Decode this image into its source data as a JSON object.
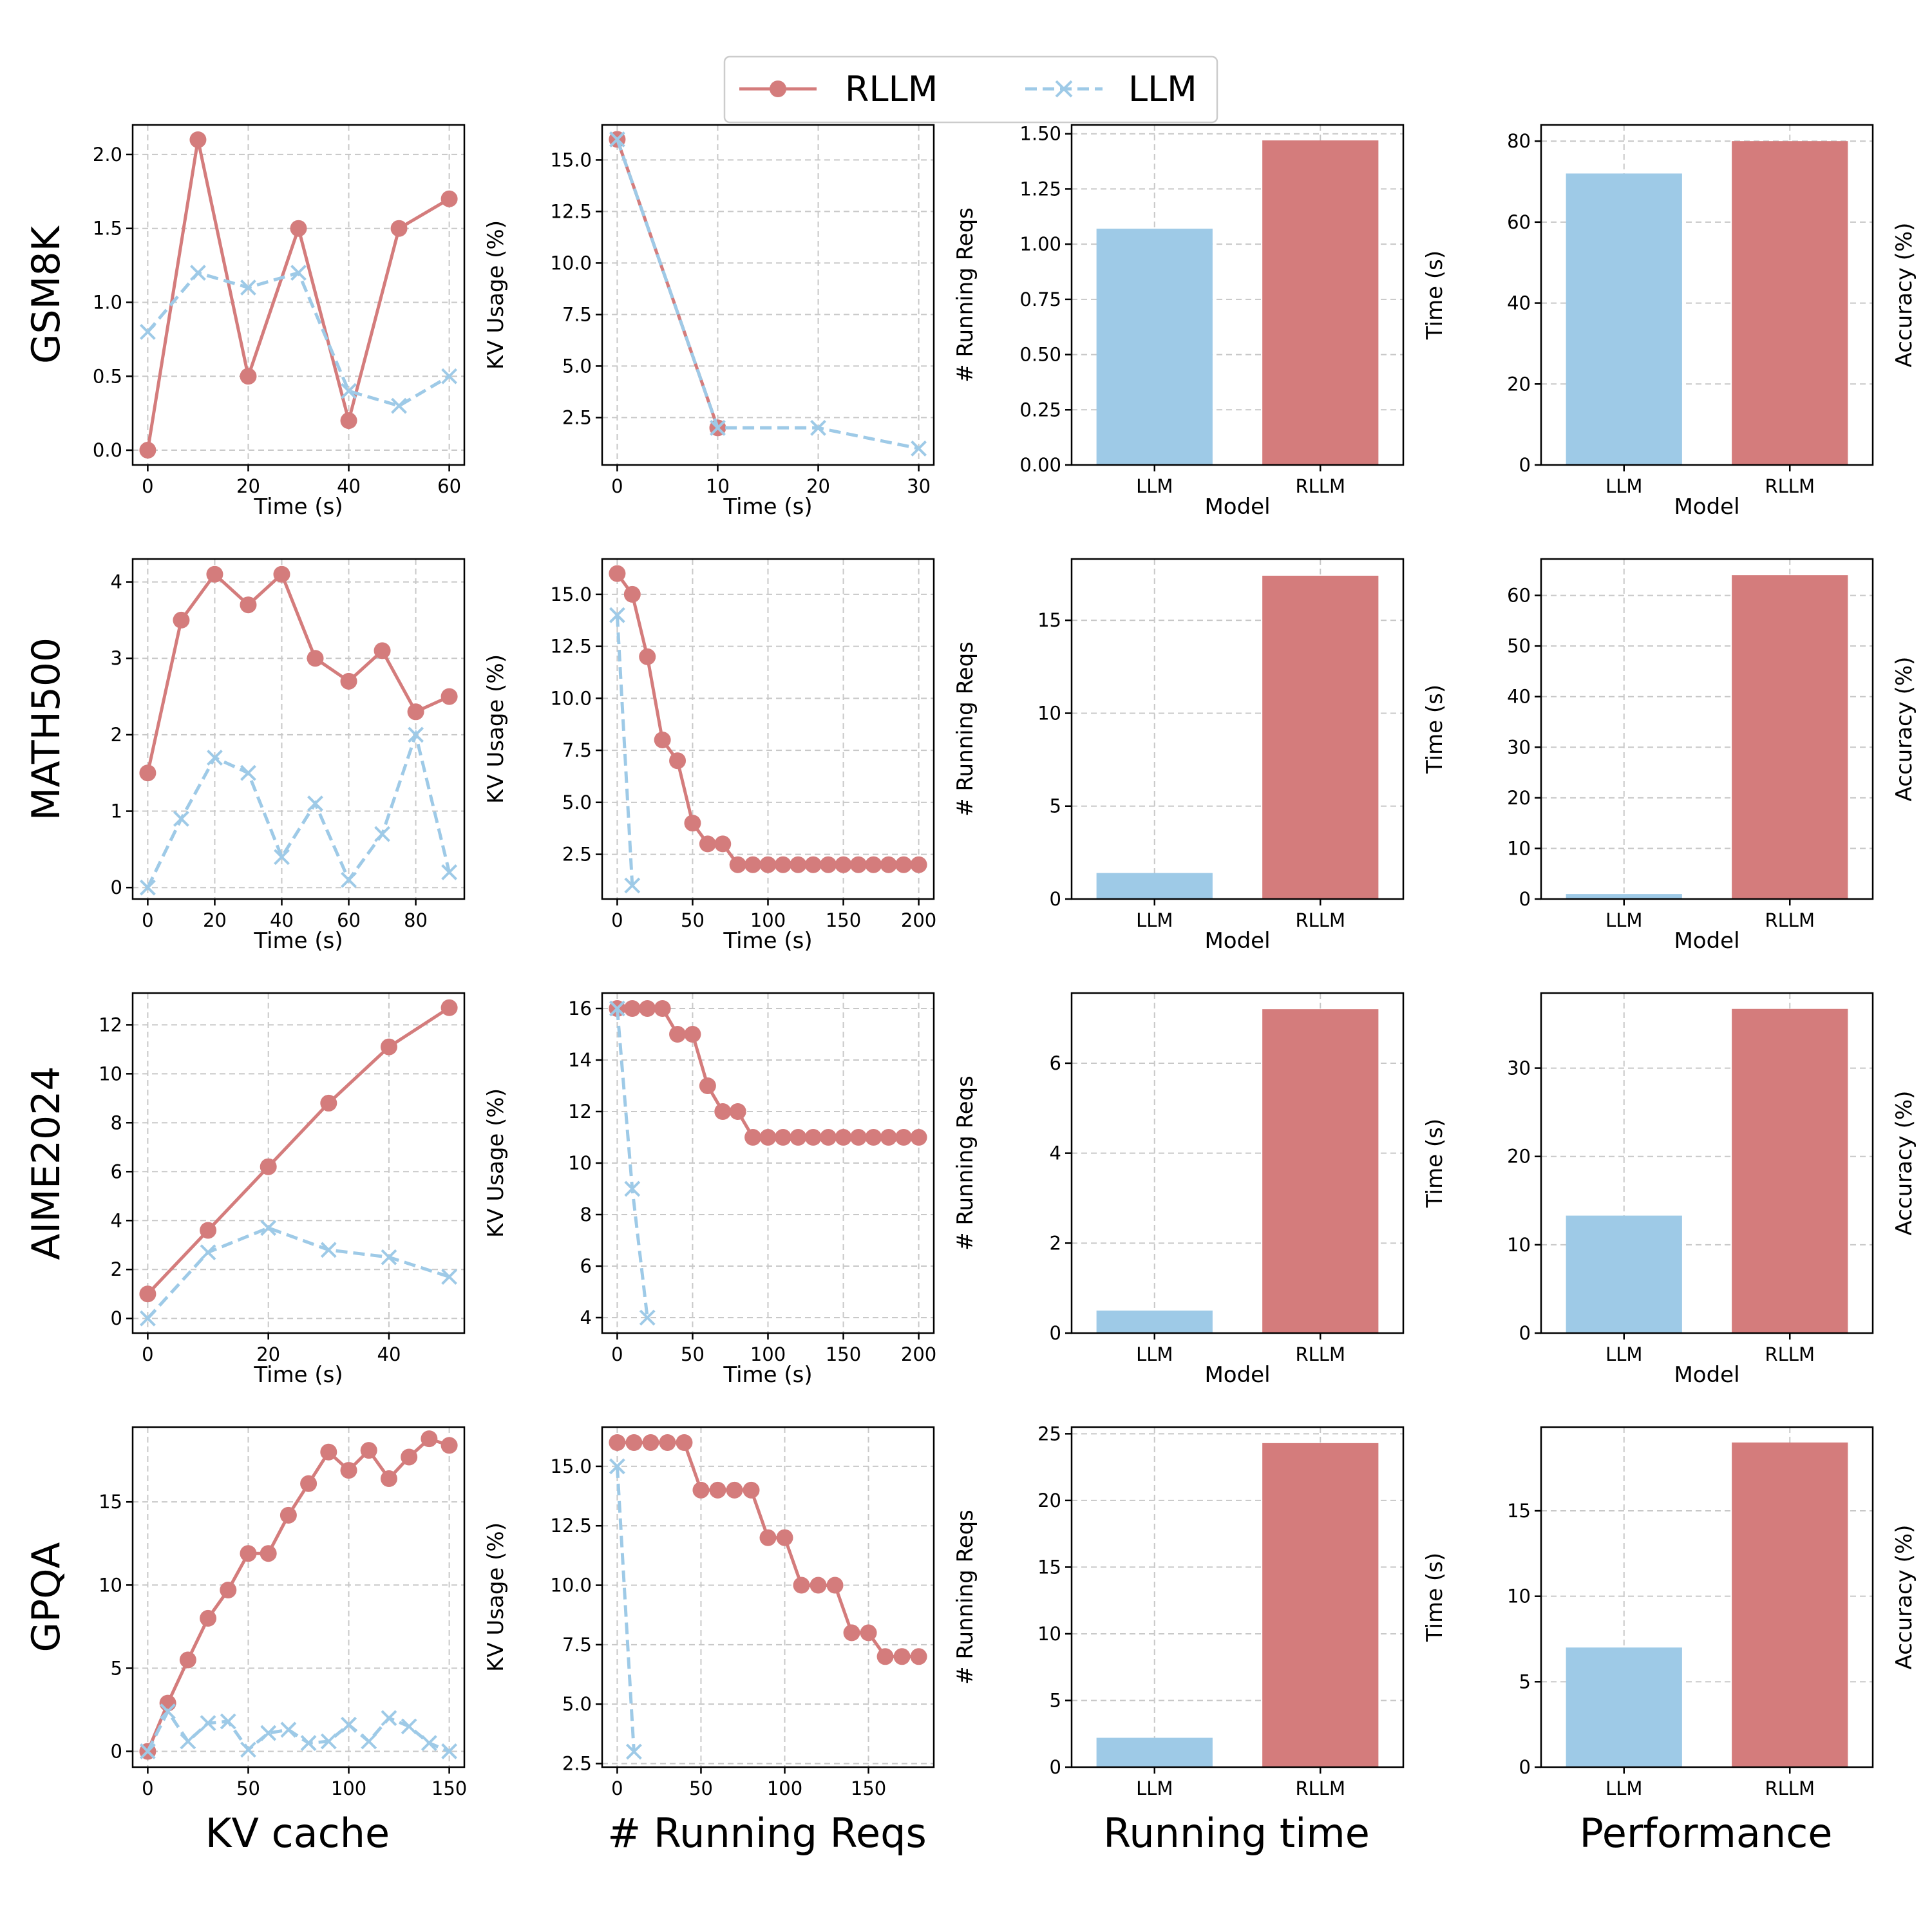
{
  "colors": {
    "rllm": "#d47c7c",
    "llm": "#9ecae7"
  },
  "legend": {
    "placement": "top-center",
    "entries": [
      {
        "label": "RLLM",
        "marker": "circle",
        "line": "solid",
        "color": "#d47c7c"
      },
      {
        "label": "LLM",
        "marker": "x",
        "line": "dashed",
        "color": "#9ecae7"
      }
    ]
  },
  "row_labels": [
    "GSM8K",
    "MATH500",
    "AIME2024",
    "GPQA"
  ],
  "column_labels": [
    "KV cache",
    "# Running Reqs",
    "Running time",
    "Performance"
  ],
  "chart_data": [
    {
      "dataset": "GSM8K",
      "column": "KV cache",
      "type": "line",
      "xlabel": "Time (s)",
      "ylabel": "KV Usage (%)",
      "xlim": [
        -3,
        63
      ],
      "ylim": [
        -0.1,
        2.2
      ],
      "xticks": [
        0,
        20,
        40,
        60
      ],
      "xtick_labels": [
        "0",
        "20",
        "40",
        "60"
      ],
      "yticks": [
        0,
        0.5,
        1.0,
        1.5,
        2.0
      ],
      "ytick_labels": [
        "0.0",
        "0.5",
        "1.0",
        "1.5",
        "2.0"
      ],
      "grid": true,
      "series": [
        {
          "name": "RLLM",
          "x": [
            0,
            10,
            20,
            30,
            40,
            50,
            60
          ],
          "y": [
            0.0,
            2.1,
            0.5,
            1.5,
            0.2,
            1.5,
            1.7
          ]
        },
        {
          "name": "LLM",
          "x": [
            0,
            10,
            20,
            30,
            40,
            50,
            60
          ],
          "y": [
            0.8,
            1.2,
            1.1,
            1.2,
            0.4,
            0.3,
            0.5
          ]
        }
      ]
    },
    {
      "dataset": "GSM8K",
      "column": "# Running Reqs",
      "type": "line",
      "xlabel": "Time (s)",
      "ylabel": "# Running Reqs",
      "xlim": [
        -1.5,
        31.5
      ],
      "ylim": [
        0.2,
        16.7
      ],
      "xticks": [
        0,
        10,
        20,
        30
      ],
      "xtick_labels": [
        "0",
        "10",
        "20",
        "30"
      ],
      "yticks": [
        2.5,
        5.0,
        7.5,
        10.0,
        12.5,
        15.0
      ],
      "ytick_labels": [
        "2.5",
        "5.0",
        "7.5",
        "10.0",
        "12.5",
        "15.0"
      ],
      "grid": true,
      "series": [
        {
          "name": "RLLM",
          "x": [
            0,
            10
          ],
          "y": [
            16,
            2
          ]
        },
        {
          "name": "LLM",
          "x": [
            0,
            10,
            20,
            30
          ],
          "y": [
            16,
            2,
            2,
            1
          ]
        }
      ]
    },
    {
      "dataset": "GSM8K",
      "column": "Running time",
      "type": "bar",
      "xlabel": "Model",
      "ylabel": "Time (s)",
      "categories": [
        "LLM",
        "RLLM"
      ],
      "values": [
        1.07,
        1.47
      ],
      "ylim": [
        0,
        1.54
      ],
      "yticks": [
        0,
        0.25,
        0.5,
        0.75,
        1.0,
        1.25,
        1.5
      ],
      "ytick_labels": [
        "0.00",
        "0.25",
        "0.50",
        "0.75",
        "1.00",
        "1.25",
        "1.50"
      ],
      "grid": true
    },
    {
      "dataset": "GSM8K",
      "column": "Performance",
      "type": "bar",
      "xlabel": "Model",
      "ylabel": "Accuracy (%)",
      "categories": [
        "LLM",
        "RLLM"
      ],
      "values": [
        72,
        80
      ],
      "ylim": [
        0,
        84
      ],
      "yticks": [
        0,
        20,
        40,
        60,
        80
      ],
      "ytick_labels": [
        "0",
        "20",
        "40",
        "60",
        "80"
      ],
      "grid": true
    },
    {
      "dataset": "MATH500",
      "column": "KV cache",
      "type": "line",
      "xlabel": "Time (s)",
      "ylabel": "KV Usage (%)",
      "xlim": [
        -4.5,
        94.5
      ],
      "ylim": [
        -0.15,
        4.3
      ],
      "xticks": [
        0,
        20,
        40,
        60,
        80
      ],
      "xtick_labels": [
        "0",
        "20",
        "40",
        "60",
        "80"
      ],
      "yticks": [
        0,
        1,
        2,
        3,
        4
      ],
      "ytick_labels": [
        "0",
        "1",
        "2",
        "3",
        "4"
      ],
      "grid": true,
      "series": [
        {
          "name": "RLLM",
          "x": [
            0,
            10,
            20,
            30,
            40,
            50,
            60,
            70,
            80,
            90
          ],
          "y": [
            1.5,
            3.5,
            4.1,
            3.7,
            4.1,
            3.0,
            2.7,
            3.1,
            2.3,
            2.5
          ]
        },
        {
          "name": "LLM",
          "x": [
            0,
            10,
            20,
            30,
            40,
            50,
            60,
            70,
            80,
            90
          ],
          "y": [
            0.0,
            0.9,
            1.7,
            1.5,
            0.4,
            1.1,
            0.1,
            0.7,
            2.0,
            0.2
          ]
        }
      ]
    },
    {
      "dataset": "MATH500",
      "column": "# Running Reqs",
      "type": "line",
      "xlabel": "Time (s)",
      "ylabel": "# Running Reqs",
      "xlim": [
        -10,
        210
      ],
      "ylim": [
        0.35,
        16.7
      ],
      "xticks": [
        0,
        50,
        100,
        150,
        200
      ],
      "xtick_labels": [
        "0",
        "50",
        "100",
        "150",
        "200"
      ],
      "yticks": [
        2.5,
        5.0,
        7.5,
        10.0,
        12.5,
        15.0
      ],
      "ytick_labels": [
        "2.5",
        "5.0",
        "7.5",
        "10.0",
        "12.5",
        "15.0"
      ],
      "grid": true,
      "series": [
        {
          "name": "RLLM",
          "x": [
            0,
            10,
            20,
            30,
            40,
            50,
            60,
            70,
            80,
            90,
            100,
            110,
            120,
            130,
            140,
            150,
            160,
            170,
            180,
            190,
            200
          ],
          "y": [
            16,
            15,
            12,
            8,
            7,
            4,
            3,
            3,
            2,
            2,
            2,
            2,
            2,
            2,
            2,
            2,
            2,
            2,
            2,
            2,
            2
          ]
        },
        {
          "name": "LLM",
          "x": [
            0,
            10
          ],
          "y": [
            14,
            1
          ]
        }
      ]
    },
    {
      "dataset": "MATH500",
      "column": "Running time",
      "type": "bar",
      "xlabel": "Model",
      "ylabel": "Time (s)",
      "categories": [
        "LLM",
        "RLLM"
      ],
      "values": [
        1.4,
        17.4
      ],
      "ylim": [
        0,
        18.3
      ],
      "yticks": [
        0,
        5,
        10,
        15
      ],
      "ytick_labels": [
        "0",
        "5",
        "10",
        "15"
      ],
      "grid": true
    },
    {
      "dataset": "MATH500",
      "column": "Performance",
      "type": "bar",
      "xlabel": "Model",
      "ylabel": "Accuracy (%)",
      "categories": [
        "LLM",
        "RLLM"
      ],
      "values": [
        1,
        64
      ],
      "ylim": [
        0,
        67.2
      ],
      "yticks": [
        0,
        10,
        20,
        30,
        40,
        50,
        60
      ],
      "ytick_labels": [
        "0",
        "10",
        "20",
        "30",
        "40",
        "50",
        "60"
      ],
      "grid": true
    },
    {
      "dataset": "AIME2024",
      "column": "KV cache",
      "type": "line",
      "xlabel": "Time (s)",
      "ylabel": "KV Usage (%)",
      "xlim": [
        -2.5,
        52.5
      ],
      "ylim": [
        -0.6,
        13.3
      ],
      "xticks": [
        0,
        20,
        40
      ],
      "xtick_labels": [
        "0",
        "20",
        "40"
      ],
      "yticks": [
        0,
        2,
        4,
        6,
        8,
        10,
        12
      ],
      "ytick_labels": [
        "0",
        "2",
        "4",
        "6",
        "8",
        "10",
        "12"
      ],
      "grid": true,
      "series": [
        {
          "name": "RLLM",
          "x": [
            0,
            10,
            20,
            30,
            40,
            50
          ],
          "y": [
            1.0,
            3.6,
            6.2,
            8.8,
            11.1,
            12.7
          ]
        },
        {
          "name": "LLM",
          "x": [
            0,
            10,
            20,
            30,
            40,
            50
          ],
          "y": [
            0.0,
            2.7,
            3.7,
            2.8,
            2.5,
            1.7
          ]
        }
      ]
    },
    {
      "dataset": "AIME2024",
      "column": "# Running Reqs",
      "type": "line",
      "xlabel": "Time (s)",
      "ylabel": "# Running Reqs",
      "xlim": [
        -10,
        210
      ],
      "ylim": [
        3.4,
        16.6
      ],
      "xticks": [
        0,
        50,
        100,
        150,
        200
      ],
      "xtick_labels": [
        "0",
        "50",
        "100",
        "150",
        "200"
      ],
      "yticks": [
        4,
        6,
        8,
        10,
        12,
        14,
        16
      ],
      "ytick_labels": [
        "4",
        "6",
        "8",
        "10",
        "12",
        "14",
        "16"
      ],
      "grid": true,
      "series": [
        {
          "name": "RLLM",
          "x": [
            0,
            10,
            20,
            30,
            40,
            50,
            60,
            70,
            80,
            90,
            100,
            110,
            120,
            130,
            140,
            150,
            160,
            170,
            180,
            190,
            200
          ],
          "y": [
            16,
            16,
            16,
            16,
            15,
            15,
            13,
            12,
            12,
            11,
            11,
            11,
            11,
            11,
            11,
            11,
            11,
            11,
            11,
            11,
            11
          ]
        },
        {
          "name": "LLM",
          "x": [
            0,
            10,
            20
          ],
          "y": [
            16,
            9,
            4
          ]
        }
      ]
    },
    {
      "dataset": "AIME2024",
      "column": "Running time",
      "type": "bar",
      "xlabel": "Model",
      "ylabel": "Time (s)",
      "categories": [
        "LLM",
        "RLLM"
      ],
      "values": [
        0.5,
        7.2
      ],
      "ylim": [
        0,
        7.56
      ],
      "yticks": [
        0,
        2,
        4,
        6
      ],
      "ytick_labels": [
        "0",
        "2",
        "4",
        "6"
      ],
      "grid": true
    },
    {
      "dataset": "AIME2024",
      "column": "Performance",
      "type": "bar",
      "xlabel": "Model",
      "ylabel": "Accuracy (%)",
      "categories": [
        "LLM",
        "RLLM"
      ],
      "values": [
        13.3,
        36.7
      ],
      "ylim": [
        0,
        38.5
      ],
      "yticks": [
        0,
        10,
        20,
        30
      ],
      "ytick_labels": [
        "0",
        "10",
        "20",
        "30"
      ],
      "grid": true
    },
    {
      "dataset": "GPQA",
      "column": "KV cache",
      "type": "line",
      "xlabel": "",
      "ylabel": "KV Usage (%)",
      "xlim": [
        -7.5,
        157.5
      ],
      "ylim": [
        -0.95,
        19.5
      ],
      "xticks": [
        0,
        50,
        100,
        150
      ],
      "xtick_labels": [
        "0",
        "50",
        "100",
        "150"
      ],
      "yticks": [
        0,
        5,
        10,
        15
      ],
      "ytick_labels": [
        "0",
        "5",
        "10",
        "15"
      ],
      "grid": true,
      "series": [
        {
          "name": "RLLM",
          "x": [
            0,
            10,
            20,
            30,
            40,
            50,
            60,
            70,
            80,
            90,
            100,
            110,
            120,
            130,
            140,
            150
          ],
          "y": [
            0.0,
            2.9,
            5.5,
            8.0,
            9.7,
            11.9,
            11.9,
            14.2,
            16.1,
            18.0,
            16.9,
            18.1,
            16.4,
            17.7,
            18.8,
            18.4
          ]
        },
        {
          "name": "LLM",
          "x": [
            0,
            10,
            20,
            30,
            40,
            50,
            60,
            70,
            80,
            90,
            100,
            110,
            120,
            130,
            140,
            150
          ],
          "y": [
            0.0,
            2.4,
            0.6,
            1.7,
            1.8,
            0.1,
            1.1,
            1.3,
            0.5,
            0.6,
            1.6,
            0.6,
            2.0,
            1.5,
            0.5,
            0.0
          ]
        }
      ]
    },
    {
      "dataset": "GPQA",
      "column": "# Running Reqs",
      "type": "line",
      "xlabel": "",
      "ylabel": "# Running Reqs",
      "xlim": [
        -9,
        189
      ],
      "ylim": [
        2.35,
        16.65
      ],
      "xticks": [
        0,
        50,
        100,
        150
      ],
      "xtick_labels": [
        "0",
        "50",
        "100",
        "150"
      ],
      "yticks": [
        2.5,
        5.0,
        7.5,
        10.0,
        12.5,
        15.0
      ],
      "ytick_labels": [
        "2.5",
        "5.0",
        "7.5",
        "10.0",
        "12.5",
        "15.0"
      ],
      "grid": true,
      "series": [
        {
          "name": "RLLM",
          "x": [
            0,
            10,
            20,
            30,
            40,
            50,
            60,
            70,
            80,
            90,
            100,
            110,
            120,
            130,
            140,
            150,
            160,
            170,
            180
          ],
          "y": [
            16,
            16,
            16,
            16,
            16,
            14,
            14,
            14,
            14,
            12,
            12,
            10,
            10,
            10,
            8,
            8,
            7,
            7,
            7
          ]
        },
        {
          "name": "LLM",
          "x": [
            0,
            10
          ],
          "y": [
            15,
            3
          ]
        }
      ]
    },
    {
      "dataset": "GPQA",
      "column": "Running time",
      "type": "bar",
      "xlabel": "",
      "ylabel": "Time (s)",
      "categories": [
        "LLM",
        "RLLM"
      ],
      "values": [
        2.2,
        24.3
      ],
      "ylim": [
        0,
        25.5
      ],
      "yticks": [
        0,
        5,
        10,
        15,
        20,
        25
      ],
      "ytick_labels": [
        "0",
        "5",
        "10",
        "15",
        "20",
        "25"
      ],
      "grid": true
    },
    {
      "dataset": "GPQA",
      "column": "Performance",
      "type": "bar",
      "xlabel": "",
      "ylabel": "Accuracy (%)",
      "categories": [
        "LLM",
        "RLLM"
      ],
      "values": [
        7,
        19
      ],
      "ylim": [
        0,
        19.9
      ],
      "yticks": [
        0,
        5,
        10,
        15
      ],
      "ytick_labels": [
        "0",
        "5",
        "10",
        "15"
      ],
      "grid": true
    }
  ]
}
